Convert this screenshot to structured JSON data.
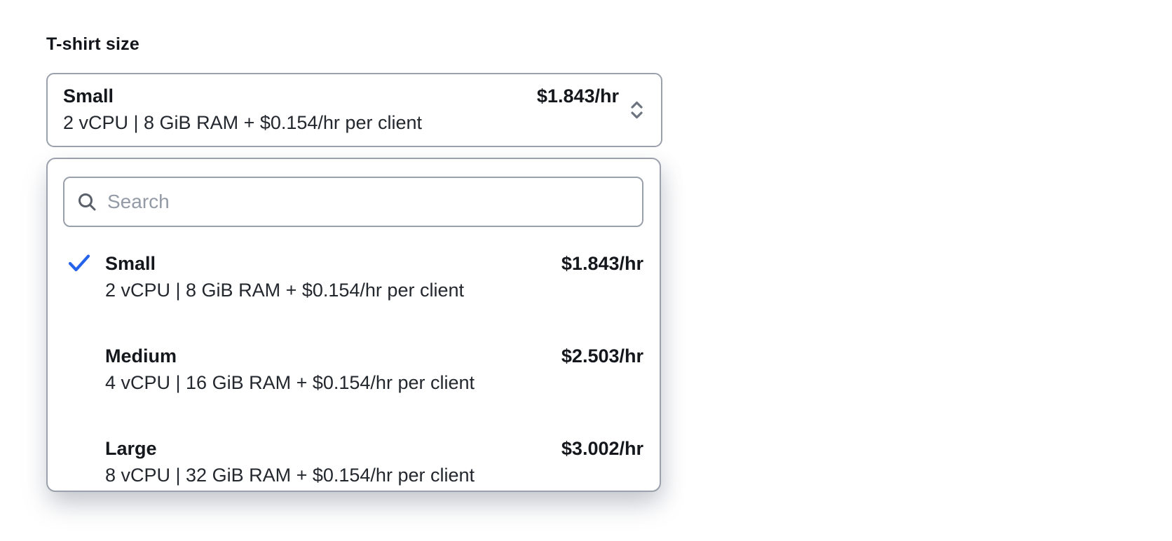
{
  "field": {
    "label": "T-shirt size"
  },
  "accent_color": "#2563eb",
  "trigger": {
    "selected_title": "Small",
    "selected_spec": "2 vCPU | 8 GiB RAM + $0.154/hr per client",
    "selected_price": "$1.843/hr",
    "chevron_icon": "chevron-up-down-icon"
  },
  "dropdown": {
    "search": {
      "placeholder": "Search",
      "value": "",
      "icon": "search-icon"
    },
    "check_icon": "check-icon",
    "options": [
      {
        "title": "Small",
        "spec": "2 vCPU | 8 GiB RAM + $0.154/hr per client",
        "price": "$1.843/hr",
        "selected": true
      },
      {
        "title": "Medium",
        "spec": "4 vCPU | 16 GiB RAM + $0.154/hr per client",
        "price": "$2.503/hr",
        "selected": false
      },
      {
        "title": "Large",
        "spec": "8 vCPU | 32 GiB RAM + $0.154/hr per client",
        "price": "$3.002/hr",
        "selected": false
      }
    ]
  }
}
